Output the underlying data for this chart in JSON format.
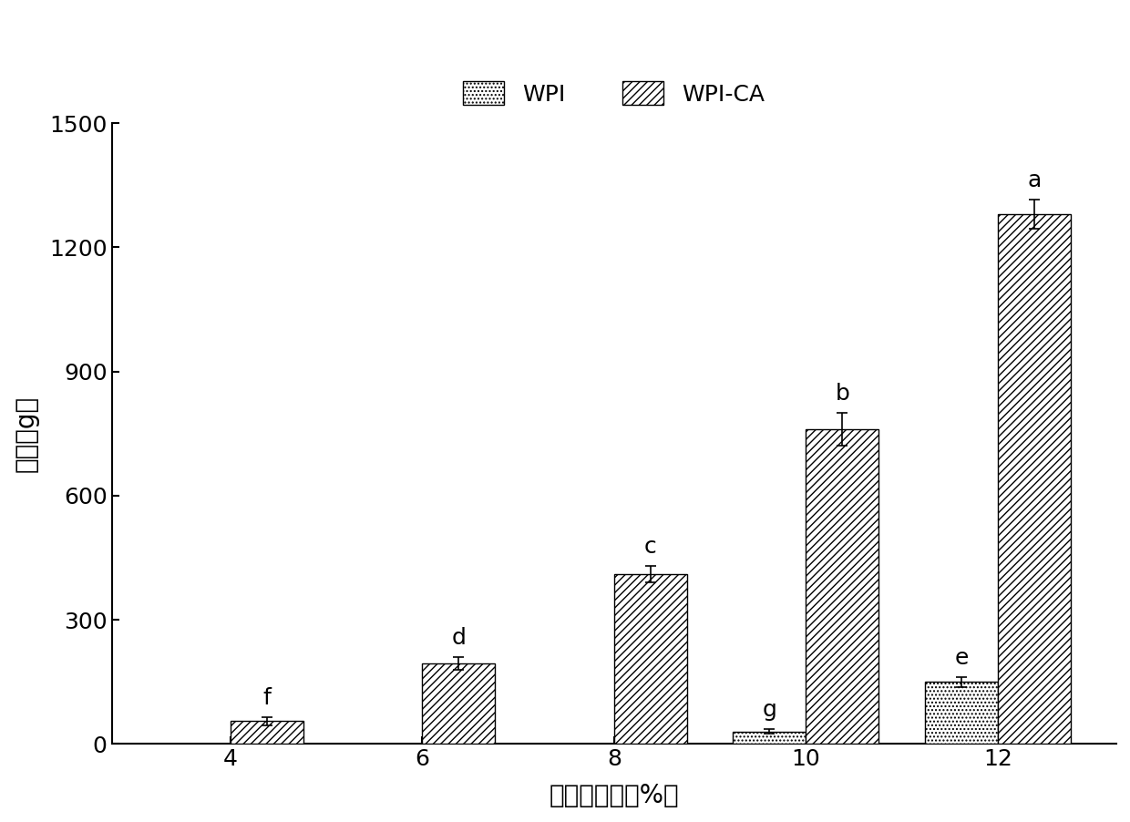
{
  "categories": [
    "4",
    "6",
    "8",
    "10",
    "12"
  ],
  "wpi_values": [
    0,
    0,
    0,
    30,
    150
  ],
  "wpi_ca_values": [
    55,
    195,
    410,
    760,
    1280
  ],
  "wpi_errors": [
    0,
    0,
    0,
    5,
    12
  ],
  "wpi_ca_errors": [
    10,
    15,
    20,
    40,
    35
  ],
  "wpi_labels": [
    "",
    "",
    "",
    "g",
    "e"
  ],
  "wpi_ca_labels": [
    "f",
    "d",
    "c",
    "b",
    "a"
  ],
  "xlabel": "蛋白质浓度（%）",
  "ylabel": "硬度（g）",
  "ylim": [
    0,
    1500
  ],
  "yticks": [
    0,
    300,
    600,
    900,
    1200,
    1500
  ],
  "legend_wpi": "WPI",
  "legend_wpi_ca": "WPI-CA",
  "background_color": "#ffffff",
  "bar_width": 0.38,
  "label_fontsize": 20,
  "tick_fontsize": 18,
  "annotation_fontsize": 18,
  "legend_fontsize": 18
}
